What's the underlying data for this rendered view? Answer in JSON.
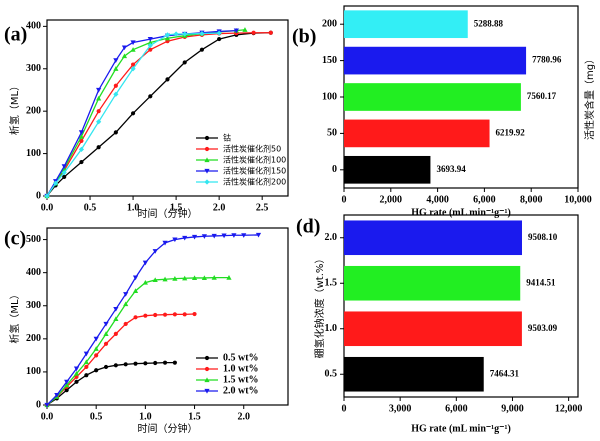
{
  "chart_data": [
    {
      "type": "line",
      "panel_label": "(a)",
      "xlabel": "时间（分钟）",
      "ylabel": "析氢（ML）",
      "xlim": [
        0,
        2.8
      ],
      "xticks": [
        {
          "value": 0,
          "label": "0.0"
        },
        0.5,
        {
          "value": 1,
          "label": "1.0"
        },
        1.5,
        {
          "value": 2,
          "label": "2.0"
        },
        2.5
      ],
      "ylim": [
        0,
        415
      ],
      "yticks": [
        0,
        100,
        200,
        300,
        400
      ],
      "grid": false,
      "legend": "lower-right",
      "series": [
        {
          "name": "钴",
          "color": "#000000",
          "marker": "circle",
          "x": [
            0,
            0.1,
            0.2,
            0.4,
            0.6,
            0.8,
            1.0,
            1.2,
            1.4,
            1.6,
            1.8,
            2.0,
            2.2,
            2.4,
            2.6
          ],
          "values": [
            0,
            25,
            45,
            80,
            115,
            150,
            195,
            235,
            275,
            315,
            345,
            370,
            380,
            384,
            385
          ]
        },
        {
          "name": "活性炭催化剂50",
          "color": "#ff1a1a",
          "marker": "circle",
          "x": [
            0,
            0.1,
            0.2,
            0.4,
            0.6,
            0.8,
            1.0,
            1.2,
            1.4,
            1.6,
            1.8,
            2.0,
            2.2,
            2.4,
            2.6
          ],
          "values": [
            0,
            30,
            60,
            130,
            200,
            260,
            310,
            345,
            365,
            375,
            380,
            383,
            384,
            385,
            385
          ]
        },
        {
          "name": "活性炭催化剂100",
          "color": "#22dd22",
          "marker": "triangle-up",
          "x": [
            0,
            0.1,
            0.2,
            0.4,
            0.6,
            0.8,
            0.9,
            1.0,
            1.2,
            1.4,
            1.6,
            1.8,
            2.0,
            2.2,
            2.3
          ],
          "values": [
            0,
            30,
            65,
            140,
            230,
            300,
            330,
            345,
            362,
            372,
            378,
            383,
            387,
            390,
            392
          ]
        },
        {
          "name": "活性炭催化剂150",
          "color": "#1a1aee",
          "marker": "triangle-down",
          "x": [
            0,
            0.1,
            0.2,
            0.4,
            0.6,
            0.8,
            0.9,
            1.0,
            1.2,
            1.4,
            1.6,
            1.8,
            2.0,
            2.2
          ],
          "values": [
            0,
            35,
            70,
            150,
            250,
            320,
            350,
            362,
            370,
            378,
            382,
            385,
            388,
            390
          ]
        },
        {
          "name": "活性炭催化剂200",
          "color": "#33e6f0",
          "marker": "diamond",
          "x": [
            0,
            0.1,
            0.2,
            0.4,
            0.6,
            0.8,
            1.0,
            1.2,
            1.4,
            1.5,
            1.6,
            1.8,
            2.0
          ],
          "values": [
            0,
            30,
            55,
            110,
            175,
            240,
            300,
            355,
            380,
            382,
            382,
            383,
            384
          ]
        }
      ]
    },
    {
      "type": "hbar",
      "panel_label": "(b)",
      "xlabel": "HG rate (mL min⁻¹g⁻¹)",
      "ylabel": "活性炭含量（mg）",
      "categories": [
        "0",
        "50",
        "100",
        "150",
        "200"
      ],
      "values": [
        3693.94,
        6219.92,
        7560.17,
        7780.96,
        5288.88
      ],
      "colors": [
        "#000000",
        "#ff1a1a",
        "#22ee22",
        "#1a1aee",
        "#33eef5"
      ],
      "xlim": [
        0,
        10000
      ],
      "xticks": [
        0,
        {
          "value": 2000,
          "label": "2,000"
        },
        {
          "value": 4000,
          "label": "4,000"
        },
        {
          "value": 6000,
          "label": "6,000"
        },
        {
          "value": 8000,
          "label": "8,000"
        },
        {
          "value": 10000,
          "label": "10,000"
        }
      ],
      "grid": false
    },
    {
      "type": "line",
      "panel_label": "(c)",
      "xlabel": "时间（分钟）",
      "ylabel": "析氢（ML）",
      "xlim": [
        0,
        2.45
      ],
      "xticks": [
        {
          "value": 0,
          "label": "0.0"
        },
        0.5,
        {
          "value": 1,
          "label": "1.0"
        },
        1.5,
        {
          "value": 2,
          "label": "2.0"
        }
      ],
      "ylim": [
        0,
        535
      ],
      "yticks": [
        0,
        100,
        200,
        300,
        400,
        500
      ],
      "grid": false,
      "legend": "lower-right",
      "series": [
        {
          "name": "0.5 wt%",
          "color": "#000000",
          "marker": "circle",
          "x": [
            0,
            0.1,
            0.2,
            0.3,
            0.4,
            0.5,
            0.6,
            0.7,
            0.8,
            0.9,
            1.0,
            1.1,
            1.2,
            1.3
          ],
          "values": [
            0,
            20,
            45,
            70,
            90,
            105,
            115,
            120,
            123,
            125,
            126,
            127,
            128,
            128
          ]
        },
        {
          "name": "1.0 wt%",
          "color": "#ff1a1a",
          "marker": "circle",
          "x": [
            0,
            0.1,
            0.2,
            0.3,
            0.4,
            0.5,
            0.6,
            0.7,
            0.8,
            0.9,
            1.0,
            1.1,
            1.2,
            1.3,
            1.4,
            1.5
          ],
          "values": [
            0,
            25,
            55,
            85,
            115,
            150,
            185,
            215,
            245,
            265,
            270,
            272,
            273,
            274,
            274,
            275
          ]
        },
        {
          "name": "1.5 wt%",
          "color": "#22dd22",
          "marker": "triangle-up",
          "x": [
            0,
            0.1,
            0.2,
            0.3,
            0.4,
            0.5,
            0.6,
            0.7,
            0.8,
            0.9,
            1.0,
            1.1,
            1.2,
            1.3,
            1.4,
            1.5,
            1.6,
            1.7,
            1.85
          ],
          "values": [
            0,
            25,
            60,
            95,
            130,
            170,
            215,
            260,
            305,
            345,
            370,
            378,
            380,
            382,
            383,
            384,
            384,
            385,
            385
          ]
        },
        {
          "name": "2.0 wt%",
          "color": "#1a1aee",
          "marker": "triangle-down",
          "x": [
            0,
            0.1,
            0.2,
            0.3,
            0.4,
            0.5,
            0.6,
            0.7,
            0.8,
            0.9,
            1.0,
            1.1,
            1.2,
            1.3,
            1.4,
            1.5,
            1.6,
            1.7,
            1.8,
            1.9,
            2.0,
            2.15
          ],
          "values": [
            0,
            30,
            70,
            110,
            155,
            200,
            245,
            290,
            335,
            385,
            430,
            465,
            490,
            500,
            505,
            508,
            510,
            511,
            512,
            513,
            513,
            514
          ]
        }
      ]
    },
    {
      "type": "hbar",
      "panel_label": "(d)",
      "xlabel": "HG rate (mL min⁻¹g⁻¹)",
      "ylabel": "硼氢化钠浓度（wt.%）",
      "categories": [
        "0.5",
        "1.0",
        "1.5",
        "2.0"
      ],
      "values": [
        7464.31,
        9503.09,
        9414.51,
        9508.1
      ],
      "value_labels": [
        "7464.31",
        "9503.09",
        "9414.51",
        "9508.10"
      ],
      "colors": [
        "#000000",
        "#ff1a1a",
        "#22ee22",
        "#1a1aee"
      ],
      "xlim": [
        0,
        12500
      ],
      "xticks": [
        0,
        {
          "value": 3000,
          "label": "3,000"
        },
        {
          "value": 6000,
          "label": "6,000"
        },
        {
          "value": 9000,
          "label": "9,000"
        },
        {
          "value": 12000,
          "label": "12,000"
        }
      ],
      "grid": false
    }
  ]
}
